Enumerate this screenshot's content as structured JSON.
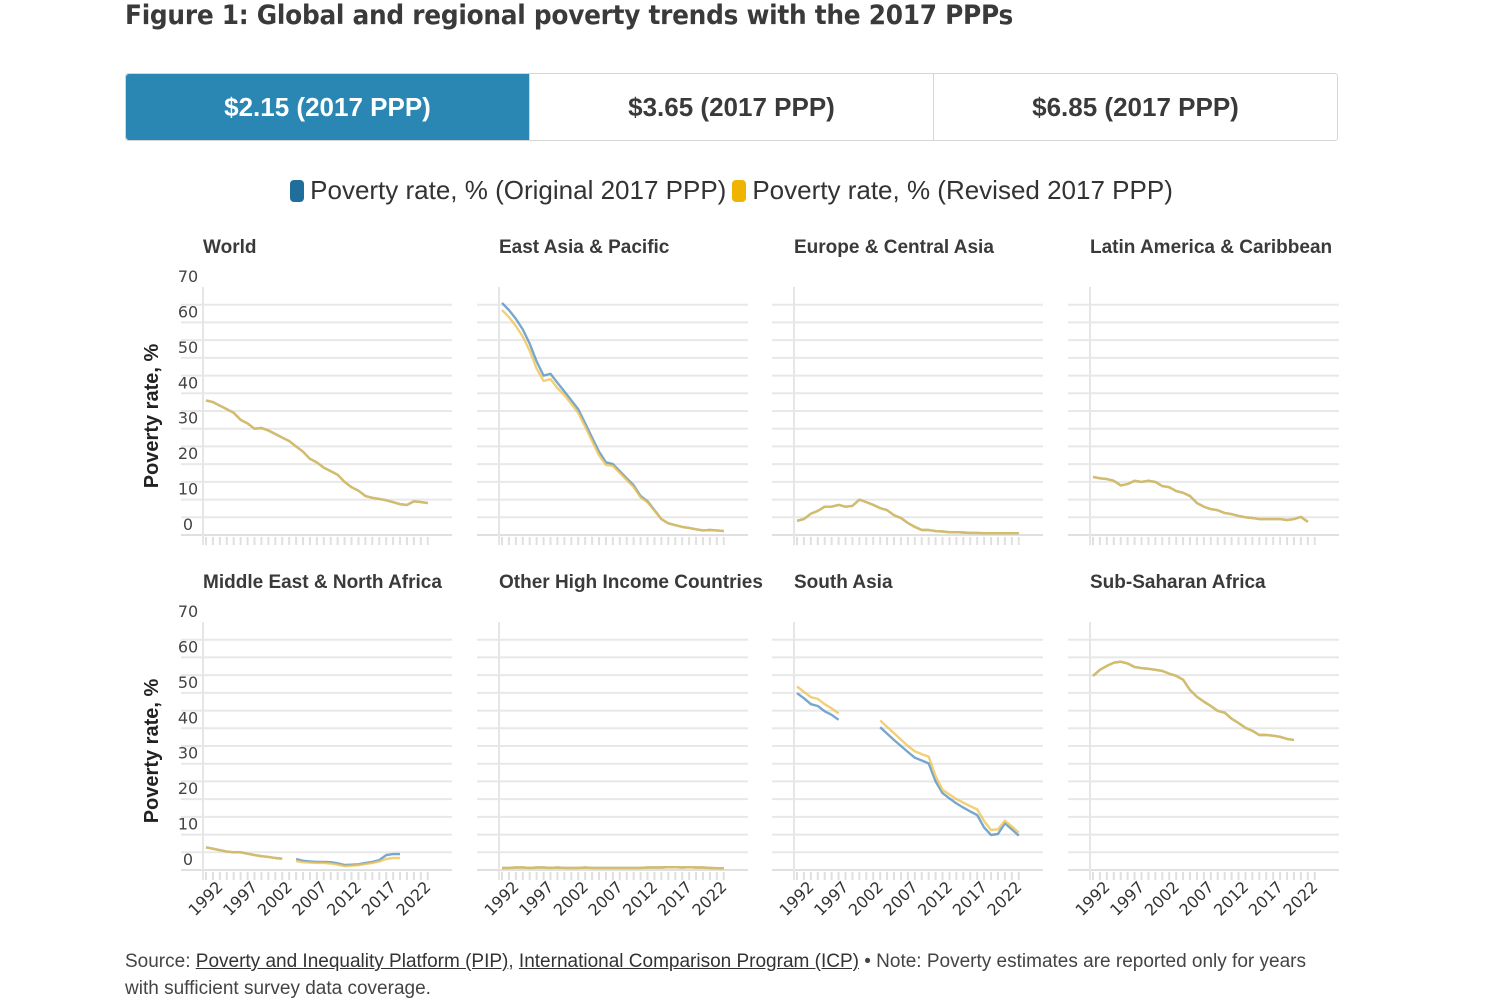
{
  "title": "Figure 1: Global and regional poverty trends with the 2017 PPPs",
  "tabs": [
    {
      "label": "$2.15 (2017 PPP)",
      "active": true
    },
    {
      "label": "$3.65 (2017 PPP)",
      "active": false
    },
    {
      "label": "$6.85 (2017 PPP)",
      "active": false
    }
  ],
  "legend": [
    {
      "label": "Poverty rate, % (Original 2017 PPP)",
      "color": "#1f6e9c"
    },
    {
      "label": "Poverty rate, % (Revised 2017 PPP)",
      "color": "#f0b400"
    }
  ],
  "footer": {
    "source_prefix": "Source:",
    "link1": "Poverty and Inequality Platform (PIP)",
    "sep": ",",
    "link2": "International Comparison Program (ICP)",
    "note": " • Note: Poverty estimates are reported only for years with sufficient survey data coverage."
  },
  "chart_data": {
    "type": "line",
    "layout": "small-multiples 2x4",
    "ylabel": "Poverty rate, %",
    "ylim": [
      0,
      70
    ],
    "yticks": [
      "0",
      "10",
      "20",
      "30",
      "40",
      "50",
      "60",
      "70"
    ],
    "xlim": [
      1990,
      2024
    ],
    "xticks": [
      "1992",
      "1997",
      "2002",
      "2007",
      "2012",
      "2017",
      "2022"
    ],
    "grid": true,
    "series_colors": {
      "original": "#4f8fc0",
      "revised": "#f0c24f"
    },
    "years": [
      1990,
      1991,
      1992,
      1993,
      1994,
      1995,
      1996,
      1997,
      1998,
      1999,
      2000,
      2001,
      2002,
      2003,
      2004,
      2005,
      2006,
      2007,
      2008,
      2009,
      2010,
      2011,
      2012,
      2013,
      2014,
      2015,
      2016,
      2017,
      2018,
      2019,
      2020,
      2021,
      2022
    ],
    "panels": [
      {
        "title": "World",
        "original": [
          38,
          37.5,
          36.5,
          35.5,
          34.5,
          32.5,
          31.5,
          30,
          30.2,
          29.5,
          28.5,
          27.5,
          26.5,
          25,
          23.5,
          21.5,
          20.5,
          19,
          18,
          17,
          15,
          13.5,
          12.5,
          11,
          10.5,
          10.2,
          9.8,
          9.3,
          8.7,
          8.5,
          9.5,
          9.3,
          9
        ],
        "revised": [
          38,
          37.5,
          36.5,
          35.5,
          34.5,
          32.5,
          31.5,
          30,
          30.2,
          29.5,
          28.5,
          27.5,
          26.5,
          25,
          23.5,
          21.5,
          20.5,
          19,
          18,
          17,
          15,
          13.5,
          12.5,
          11,
          10.5,
          10.2,
          9.8,
          9.3,
          8.7,
          8.5,
          9.5,
          9.3,
          9
        ]
      },
      {
        "title": "East Asia & Pacific",
        "original": [
          65.5,
          63.5,
          61,
          58,
          54,
          49,
          45,
          45.5,
          43,
          40.5,
          38,
          35.5,
          31.5,
          27.5,
          23.5,
          20.5,
          20,
          18,
          16,
          14,
          11,
          9.5,
          7,
          4.5,
          3.3,
          2.8,
          2.3,
          2,
          1.6,
          1.3,
          1.4,
          1.3,
          1.1
        ],
        "revised": [
          63.5,
          61.5,
          59,
          56,
          52,
          47,
          43.5,
          44,
          41.5,
          39.5,
          37,
          34.5,
          30.5,
          26.5,
          22.5,
          19.8,
          19.5,
          17.5,
          15.5,
          13.5,
          10.6,
          9.2,
          6.8,
          4.5,
          3.3,
          2.8,
          2.3,
          2,
          1.6,
          1.3,
          1.4,
          1.3,
          1.1
        ]
      },
      {
        "title": "Europe & Central Asia",
        "original": [
          4,
          4.5,
          6,
          6.8,
          8,
          8,
          8.5,
          8,
          8.2,
          10,
          9.3,
          8.5,
          7.6,
          7,
          5.6,
          4.8,
          3.4,
          2.3,
          1.4,
          1.4,
          1.1,
          1,
          0.8,
          0.8,
          0.7,
          0.6,
          0.6,
          0.5,
          0.5,
          0.5,
          0.5,
          0.5,
          0.5
        ],
        "revised": [
          4,
          4.5,
          6,
          6.8,
          8,
          8,
          8.5,
          8,
          8.2,
          10,
          9.3,
          8.5,
          7.6,
          7,
          5.6,
          4.8,
          3.4,
          2.3,
          1.4,
          1.4,
          1.1,
          1,
          0.8,
          0.8,
          0.7,
          0.6,
          0.6,
          0.5,
          0.5,
          0.5,
          0.5,
          0.5,
          0.5
        ]
      },
      {
        "title": "Latin America & Caribbean",
        "original": [
          16.4,
          16,
          15.8,
          15.3,
          14,
          14.4,
          15.3,
          15,
          15.3,
          15,
          13.8,
          13.5,
          12.4,
          11.9,
          11,
          9,
          8,
          7.3,
          7,
          6.2,
          5.9,
          5.4,
          5,
          4.8,
          4.5,
          4.5,
          4.5,
          4.5,
          4.2,
          4.5,
          5.1,
          3.7,
          null
        ],
        "revised": [
          16.4,
          16,
          15.8,
          15.3,
          14,
          14.4,
          15.3,
          15,
          15.3,
          15,
          13.8,
          13.5,
          12.4,
          11.9,
          11,
          9,
          8,
          7.3,
          7,
          6.2,
          5.9,
          5.4,
          5,
          4.8,
          4.5,
          4.5,
          4.5,
          4.5,
          4.2,
          4.5,
          5.1,
          3.7,
          null
        ]
      },
      {
        "title": "Middle East & North Africa",
        "original": [
          6.4,
          6,
          5.6,
          5.2,
          5,
          5,
          4.6,
          4.2,
          3.9,
          3.7,
          3.4,
          3.2,
          null,
          3.1,
          2.6,
          2.4,
          2.3,
          2.3,
          2.2,
          1.9,
          1.4,
          1.5,
          1.6,
          2,
          2.3,
          2.8,
          4.2,
          4.5,
          4.5,
          null,
          null,
          null,
          null
        ],
        "revised": [
          6.4,
          6,
          5.6,
          5.2,
          5,
          5,
          4.6,
          4.2,
          3.9,
          3.7,
          3.4,
          3.2,
          null,
          2.5,
          2.2,
          2.1,
          2,
          2,
          1.8,
          1.5,
          1.1,
          1.2,
          1.4,
          1.7,
          2,
          2.4,
          3.1,
          3.4,
          3.4,
          null,
          null,
          null,
          null
        ]
      },
      {
        "title": "Other High Income Countries",
        "original": [
          0.6,
          0.6,
          0.7,
          0.7,
          0.6,
          0.7,
          0.7,
          0.6,
          0.7,
          0.6,
          0.6,
          0.6,
          0.7,
          0.6,
          0.6,
          0.6,
          0.6,
          0.6,
          0.6,
          0.6,
          0.6,
          0.7,
          0.7,
          0.7,
          0.8,
          0.8,
          0.7,
          0.8,
          0.7,
          0.7,
          0.6,
          0.5,
          0.5
        ],
        "revised": [
          0.6,
          0.6,
          0.7,
          0.7,
          0.6,
          0.7,
          0.7,
          0.6,
          0.7,
          0.6,
          0.6,
          0.6,
          0.7,
          0.6,
          0.6,
          0.6,
          0.6,
          0.6,
          0.6,
          0.6,
          0.6,
          0.7,
          0.7,
          0.7,
          0.8,
          0.8,
          0.7,
          0.8,
          0.7,
          0.7,
          0.6,
          0.5,
          0.5
        ]
      },
      {
        "title": "South Asia",
        "original": [
          49.9,
          48.5,
          46.8,
          46.3,
          44.8,
          43.8,
          42.4,
          null,
          null,
          null,
          null,
          null,
          40.3,
          38.5,
          36.7,
          35,
          33.3,
          31.7,
          30.9,
          30.1,
          25,
          21.7,
          20.2,
          18.8,
          17.6,
          16.5,
          15.5,
          12,
          9.9,
          10.2,
          13.2,
          11.5,
          9.7
        ],
        "revised": [
          51.8,
          50.3,
          48.8,
          48.3,
          46.8,
          45.6,
          44.2,
          null,
          null,
          null,
          null,
          null,
          42.2,
          40.4,
          38.6,
          36.8,
          35,
          33.5,
          32.7,
          32,
          26.5,
          22.6,
          21.3,
          20,
          19,
          18,
          17.1,
          13.8,
          11.3,
          11.5,
          13.9,
          12.3,
          10.5
        ]
      },
      {
        "title": "Sub-Saharan Africa",
        "original": [
          54.8,
          56.5,
          57.6,
          58.5,
          58.8,
          58.3,
          57.3,
          57,
          56.8,
          56.5,
          56.2,
          55.4,
          54.8,
          53.7,
          50.8,
          48.9,
          47.5,
          46.3,
          44.9,
          44.4,
          42.7,
          41.5,
          40.1,
          39.3,
          38.1,
          38.1,
          37.9,
          37.6,
          37,
          36.7,
          null,
          null,
          null
        ],
        "revised": [
          54.8,
          56.5,
          57.6,
          58.5,
          58.8,
          58.3,
          57.3,
          57,
          56.8,
          56.5,
          56.2,
          55.4,
          54.8,
          53.7,
          50.8,
          48.9,
          47.5,
          46.3,
          44.9,
          44.4,
          42.7,
          41.5,
          40.1,
          39.3,
          38.1,
          38.1,
          37.9,
          37.6,
          37,
          36.7,
          null,
          null,
          null
        ]
      }
    ]
  }
}
